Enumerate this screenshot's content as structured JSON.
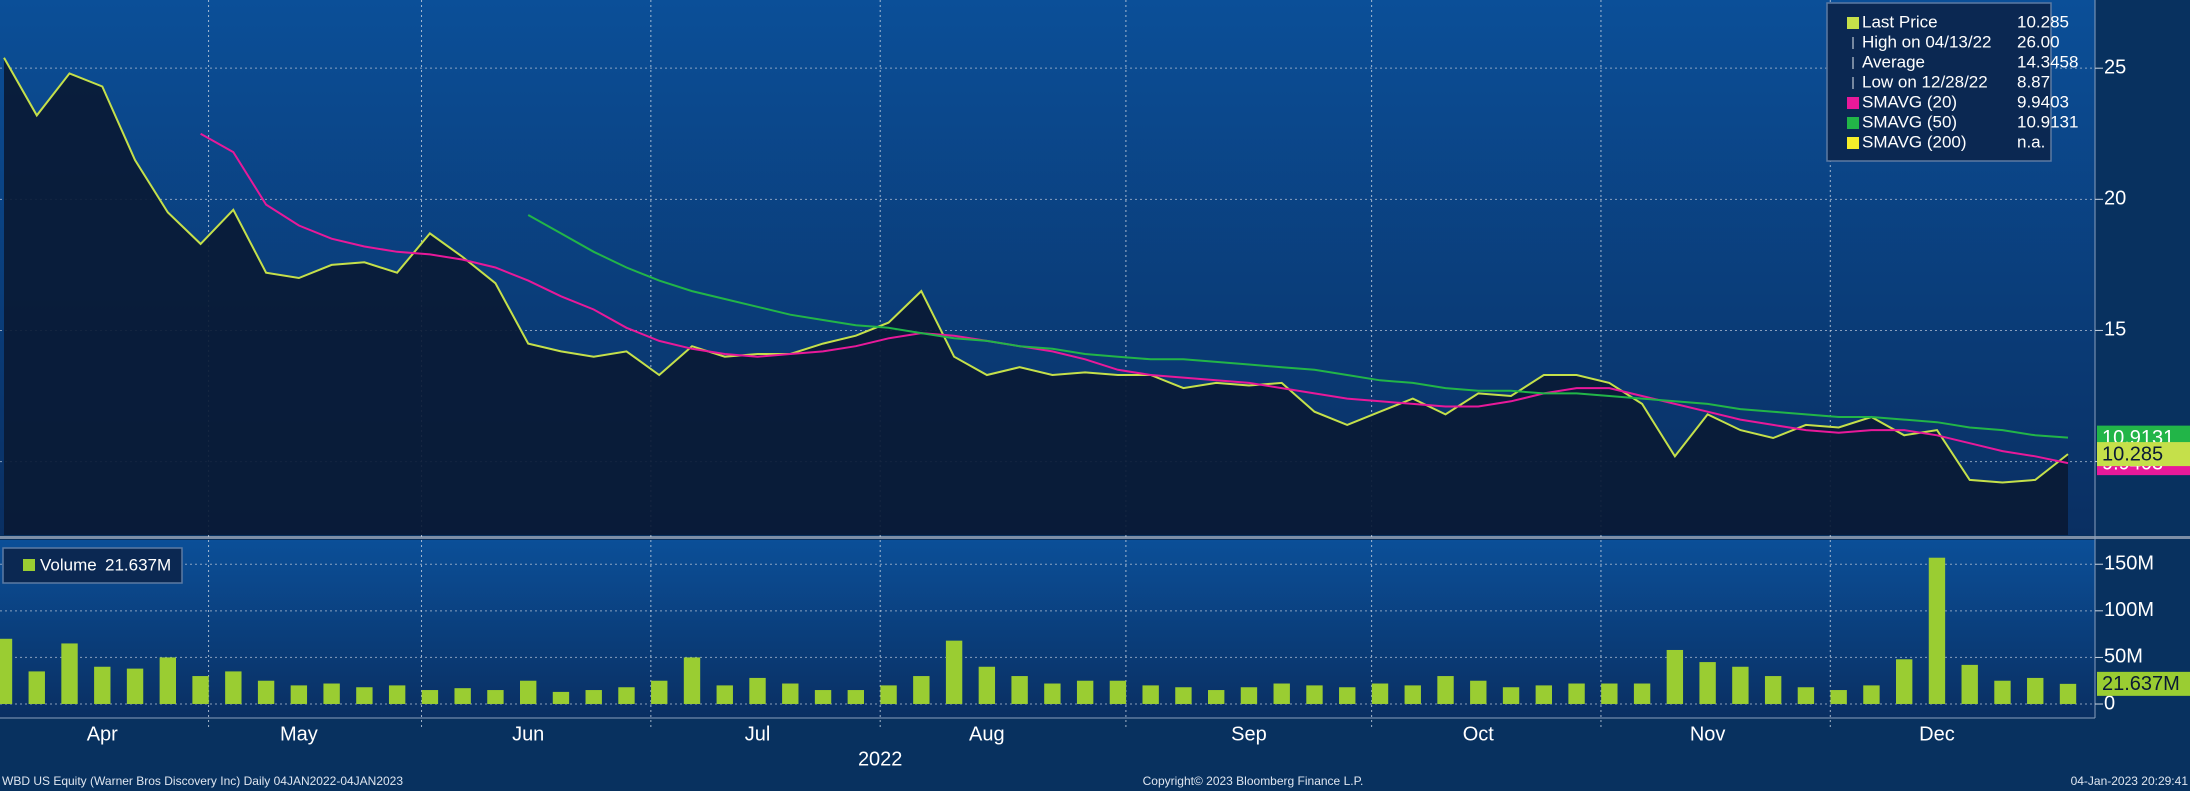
{
  "chart_data": [
    {
      "type": "line",
      "categories": [
        null,
        null,
        null,
        "Apr",
        null,
        null,
        null,
        null,
        null,
        "May",
        null,
        null,
        null,
        null,
        null,
        null,
        "Jun",
        null,
        null,
        null,
        null,
        null,
        null,
        "Jul",
        null,
        null,
        null,
        null,
        null,
        null,
        "Aug",
        null,
        null,
        null,
        null,
        null,
        null,
        null,
        "Sep",
        null,
        null,
        null,
        null,
        null,
        null,
        "Oct",
        null,
        null,
        null,
        null,
        null,
        null,
        "Nov",
        null,
        null,
        null,
        null,
        null,
        null,
        "Dec",
        null,
        null,
        null,
        null
      ],
      "xlabel": "2022",
      "series": [
        {
          "name": "Last Price",
          "color": "#c5e04a",
          "values": [
            25.4,
            23.2,
            24.8,
            24.3,
            21.5,
            19.5,
            18.3,
            19.6,
            17.2,
            17.0,
            17.5,
            17.6,
            17.2,
            18.7,
            17.8,
            16.8,
            14.5,
            14.2,
            14.0,
            14.2,
            13.3,
            14.4,
            14.0,
            14.1,
            14.1,
            14.5,
            14.8,
            15.3,
            16.5,
            14.0,
            13.3,
            13.6,
            13.3,
            13.4,
            13.3,
            13.3,
            12.8,
            13.0,
            12.9,
            13.0,
            11.9,
            11.4,
            11.9,
            12.4,
            11.8,
            12.6,
            12.5,
            13.3,
            13.3,
            13.0,
            12.2,
            10.2,
            11.8,
            11.2,
            10.9,
            11.4,
            11.3,
            11.7,
            11.0,
            11.2,
            9.3,
            9.2,
            9.3,
            10.285
          ]
        },
        {
          "name": "SMAVG (20)",
          "color": "#e8199a",
          "values": [
            null,
            null,
            null,
            null,
            null,
            null,
            22.5,
            21.8,
            19.8,
            19.0,
            18.5,
            18.2,
            18.0,
            17.9,
            17.7,
            17.4,
            16.9,
            16.3,
            15.8,
            15.1,
            14.6,
            14.3,
            14.1,
            14.0,
            14.1,
            14.2,
            14.4,
            14.7,
            14.9,
            14.8,
            14.6,
            14.4,
            14.2,
            13.9,
            13.5,
            13.3,
            13.2,
            13.1,
            13.0,
            12.8,
            12.6,
            12.4,
            12.3,
            12.2,
            12.1,
            12.1,
            12.3,
            12.6,
            12.8,
            12.8,
            12.5,
            12.2,
            11.9,
            11.6,
            11.4,
            11.2,
            11.1,
            11.2,
            11.2,
            11.0,
            10.7,
            10.4,
            10.2,
            9.9403
          ]
        },
        {
          "name": "SMAVG (50)",
          "color": "#22b548",
          "values": [
            null,
            null,
            null,
            null,
            null,
            null,
            null,
            null,
            null,
            null,
            null,
            null,
            null,
            null,
            null,
            null,
            19.4,
            18.7,
            18.0,
            17.4,
            16.9,
            16.5,
            16.2,
            15.9,
            15.6,
            15.4,
            15.2,
            15.1,
            14.9,
            14.7,
            14.6,
            14.4,
            14.3,
            14.1,
            14.0,
            13.9,
            13.9,
            13.8,
            13.7,
            13.6,
            13.5,
            13.3,
            13.1,
            13.0,
            12.8,
            12.7,
            12.7,
            12.6,
            12.6,
            12.5,
            12.4,
            12.3,
            12.2,
            12.0,
            11.9,
            11.8,
            11.7,
            11.7,
            11.6,
            11.5,
            11.3,
            11.2,
            11.0,
            10.9131
          ]
        }
      ],
      "stats": [
        {
          "label": "High on 04/13/22",
          "value": "26.00"
        },
        {
          "label": "Average",
          "value": "14.3458"
        },
        {
          "label": "Low on 12/28/22",
          "value": "8.87"
        }
      ],
      "unavailable": {
        "name": "SMAVG (200)",
        "label": "n.a.",
        "color": "#f5ee2a"
      },
      "ylim": [
        7.2,
        27.6
      ],
      "yticks": [
        10,
        15,
        20,
        25
      ],
      "grid": true,
      "legend": "upper right"
    },
    {
      "type": "bar",
      "series": [
        {
          "name": "Volume",
          "color": "#9acd32",
          "last_value_label": "21.637M",
          "values": [
            70,
            35,
            65,
            40,
            38,
            50,
            30,
            35,
            25,
            20,
            22,
            18,
            20,
            15,
            17,
            15,
            25,
            13,
            15,
            18,
            25,
            50,
            20,
            28,
            22,
            15,
            15,
            20,
            30,
            68,
            40,
            30,
            22,
            25,
            25,
            20,
            18,
            15,
            18,
            22,
            20,
            18,
            22,
            20,
            30,
            25,
            18,
            20,
            22,
            22,
            22,
            58,
            45,
            40,
            30,
            18,
            15,
            20,
            48,
            157,
            42,
            25,
            28,
            21.637
          ]
        }
      ],
      "ylim": [
        -15,
        176
      ],
      "yticks": [
        0,
        {
          "value": 50,
          "label": "50M"
        },
        {
          "value": 100,
          "label": "100M"
        },
        {
          "value": 150,
          "label": "150M"
        }
      ],
      "grid": true,
      "legend": "upper left"
    }
  ],
  "footer": {
    "left": "WBD US Equity (Warner Bros Discovery Inc)  Daily 04JAN2022-04JAN2023",
    "center": "Copyright© 2023 Bloomberg Finance L.P.",
    "right": "04-Jan-2023 20:29:41"
  }
}
